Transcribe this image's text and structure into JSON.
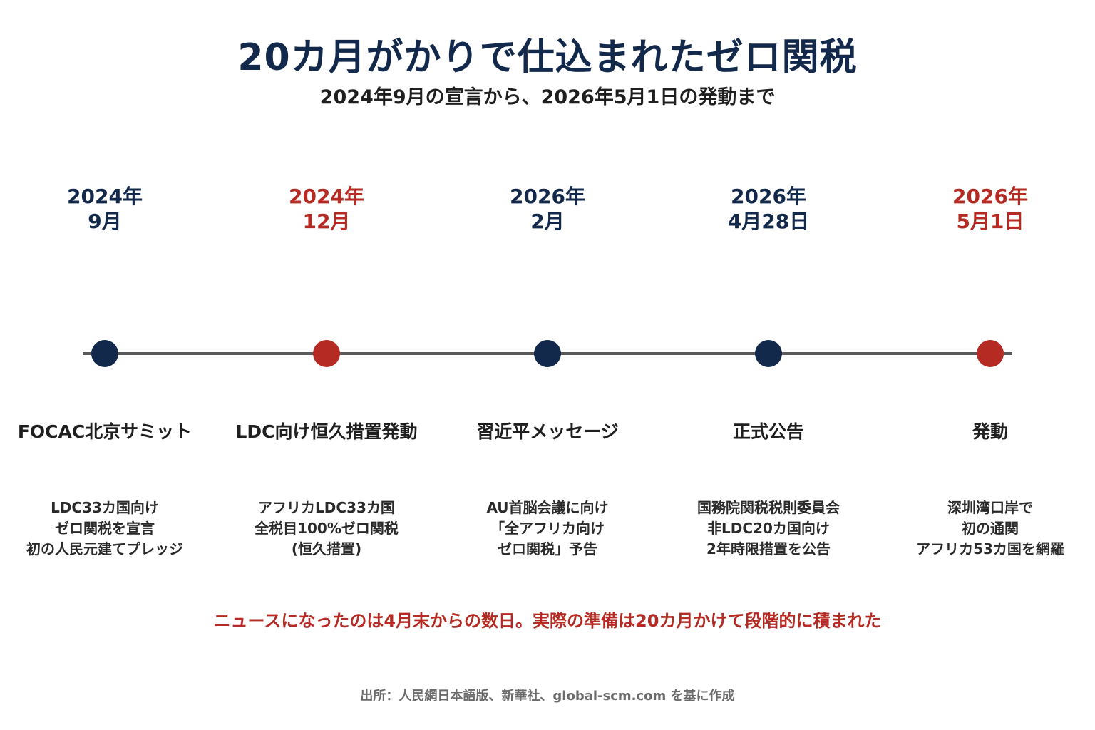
{
  "header": {
    "title": "20カ月がかりで仕込まれたゼロ関税",
    "subtitle": "2024年9月の宣言から、2026年5月1日の発動まで"
  },
  "colors": {
    "navy": "#13294b",
    "red": "#b52a22",
    "line": "#5a5a5a"
  },
  "timeline": {
    "events": [
      {
        "date": "2024年\n9月",
        "label": "FOCAC北京サミット",
        "description": "LDC33カ国向け\nゼロ関税を宣言\n初の人民元建てプレッジ",
        "color": "#13294b"
      },
      {
        "date": "2024年\n12月",
        "label": "LDC向け恒久措置発動",
        "description": "アフリカLDC33カ国\n全税目100%ゼロ関税\n(恒久措置)",
        "color": "#b52a22"
      },
      {
        "date": "2026年\n2月",
        "label": "習近平メッセージ",
        "description": "AU首脳会議に向け\n「全アフリカ向け\nゼロ関税」予告",
        "color": "#13294b"
      },
      {
        "date": "2026年\n4月28日",
        "label": "正式公告",
        "description": "国務院関税税則委員会\n非LDC20カ国向け\n2年時限措置を公告",
        "color": "#13294b"
      },
      {
        "date": "2026年\n5月1日",
        "label": "発動",
        "description": "深圳湾口岸で\n初の通関\nアフリカ53カ国を網羅",
        "color": "#b52a22"
      }
    ]
  },
  "note": "ニュースになったのは4月末からの数日。実際の準備は20カ月かけて段階的に積まれた",
  "source": "出所：人民網日本語版、新華社、global-scm.com を基に作成"
}
